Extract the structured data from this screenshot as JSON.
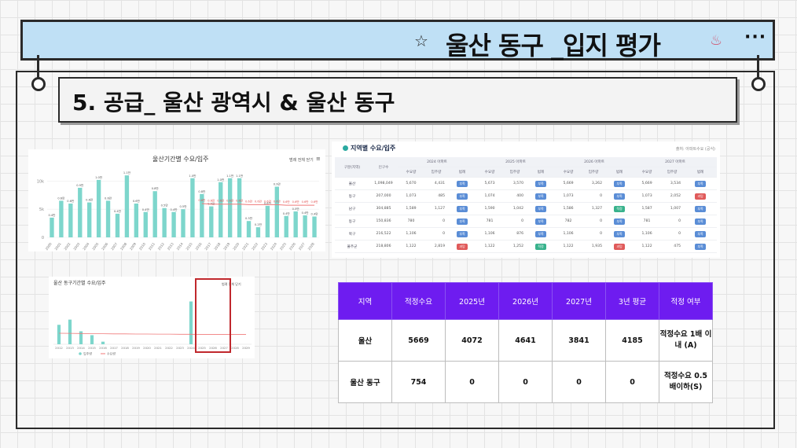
{
  "banner": {
    "title": "울산 동구 _입지 평가",
    "star": "☆",
    "shell": "♨",
    "more": "···"
  },
  "section": {
    "title": "5. 공급_ 울산 광역시 & 울산 동구"
  },
  "chart_data": [
    {
      "type": "bar",
      "title": "울산기간별 수요/입주",
      "controls": "범례 전체 닫기",
      "categories": [
        "2000",
        "2001",
        "2002",
        "2003",
        "2004",
        "2005",
        "2006",
        "2007",
        "2008",
        "2009",
        "2010",
        "2011",
        "2012",
        "2013",
        "2014",
        "2015",
        "2016",
        "2017",
        "2018",
        "2019",
        "2020",
        "2021",
        "2022",
        "2023",
        "2024",
        "2025",
        "2026",
        "2027",
        "2028"
      ],
      "series": [
        {
          "name": "입주량",
          "values": [
            3500,
            6500,
            6000,
            8800,
            6200,
            10200,
            6500,
            4200,
            11000,
            6000,
            4500,
            8200,
            5200,
            4500,
            5000,
            10500,
            7700,
            5500,
            9800,
            10500,
            10500,
            2900,
            1800,
            5600,
            9000,
            3800,
            4600,
            3900,
            3700
          ]
        },
        {
          "name": "수요량",
          "values": [
            null,
            null,
            null,
            null,
            null,
            null,
            null,
            null,
            null,
            null,
            null,
            null,
            null,
            null,
            null,
            null,
            6000,
            5900,
            5900,
            5900,
            5900,
            5800,
            5800,
            5800,
            5800,
            5700,
            5700,
            5700,
            5700
          ]
        }
      ],
      "bar_labels": [
        "0.4만",
        "0.6만",
        "0.6만",
        "0.9만",
        "0.6만",
        "1.0만",
        "0.6만",
        "0.4만",
        "1.1만",
        "0.6만",
        "0.4만",
        "0.8만",
        "0.5만",
        "0.4만",
        "0.5만",
        "1.0만",
        "0.8만",
        "0.5만",
        "1.0만",
        "1.1만",
        "1.1만",
        "0.3만",
        "0.2만",
        "0.6만",
        "0.9만",
        "0.4만",
        "0.5만",
        "0.4만",
        "0.4만"
      ],
      "demand_labels": [
        "0.6만",
        "0.6만",
        "0.6만",
        "0.6만",
        "0.6만",
        "0.6만",
        "0.6만",
        "0.6만",
        "0.6만",
        "0.6만",
        "0.6만",
        "0.6만",
        "0.6만"
      ],
      "yticks": [
        "10k",
        "5k",
        "0"
      ],
      "ylim": [
        0,
        12000
      ]
    },
    {
      "type": "bar",
      "title": "울산 동구기간별 수요/입주",
      "controls": "범례 전체 닫기",
      "categories": [
        "2012",
        "2013",
        "2014",
        "2015",
        "2016",
        "2017",
        "2018",
        "2019",
        "2020",
        "2021",
        "2022",
        "2023",
        "2024",
        "2025",
        "2026",
        "2027",
        "2028",
        "2029"
      ],
      "series": [
        {
          "name": "입주량",
          "values": [
            1500,
            1900,
            1000,
            700,
            200,
            0,
            0,
            0,
            0,
            0,
            0,
            0,
            3300,
            0,
            0,
            0,
            0,
            0
          ]
        },
        {
          "name": "수요량",
          "values": [
            850,
            840,
            830,
            820,
            810,
            800,
            800,
            790,
            790,
            780,
            780,
            770,
            770,
            760,
            760,
            754,
            754,
            754
          ]
        }
      ],
      "legend": [
        "입주량",
        "수요량"
      ],
      "highlight": [
        "2025",
        "2026",
        "2027"
      ]
    }
  ],
  "supply_table": {
    "title": "지역별 수요/입주",
    "source": "출처: 아파트수요 (공식)",
    "headers_top": [
      "구분(지역)",
      "인구수",
      "2024 아파트",
      "2025 아파트",
      "2026 아파트",
      "2027 아파트"
    ],
    "headers_sub": [
      "수요량",
      "입주량",
      "범례"
    ],
    "rows": [
      {
        "region": "울산",
        "pop": "1,098,049",
        "y2024": [
          "5,670",
          "4,431",
          "부족"
        ],
        "y2025": [
          "5,673",
          "3,570",
          "부족"
        ],
        "y2026": [
          "5,669",
          "3,262",
          "부족"
        ],
        "y2027": [
          "5,669",
          "3,534",
          "부족"
        ]
      },
      {
        "region": "동구",
        "pop": "207,000",
        "y2024": [
          "1,073",
          "485",
          "부족"
        ],
        "y2025": [
          "1,074",
          "400",
          "부족"
        ],
        "y2026": [
          "1,073",
          "0",
          "부족"
        ],
        "y2027": [
          "1,073",
          "2,052",
          "과잉"
        ]
      },
      {
        "region": "남구",
        "pop": "304,885",
        "y2024": [
          "1,589",
          "1,127",
          "부족"
        ],
        "y2025": [
          "1,590",
          "1,042",
          "부족"
        ],
        "y2026": [
          "1,586",
          "1,327",
          "적정"
        ],
        "y2027": [
          "1,587",
          "1,007",
          "부족"
        ]
      },
      {
        "region": "동구",
        "pop": "150,836",
        "y2024": [
          "780",
          "0",
          "부족"
        ],
        "y2025": [
          "781",
          "0",
          "부족"
        ],
        "y2026": [
          "782",
          "0",
          "부족"
        ],
        "y2027": [
          "781",
          "0",
          "부족"
        ]
      },
      {
        "region": "북구",
        "pop": "216,522",
        "y2024": [
          "1,106",
          "0",
          "부족"
        ],
        "y2025": [
          "1,106",
          "876",
          "부족"
        ],
        "y2026": [
          "1,106",
          "0",
          "부족"
        ],
        "y2027": [
          "1,106",
          "0",
          "부족"
        ]
      },
      {
        "region": "울주군",
        "pop": "218,806",
        "y2024": [
          "1,122",
          "2,819",
          "과잉"
        ],
        "y2025": [
          "1,122",
          "1,252",
          "적정"
        ],
        "y2026": [
          "1,122",
          "1,935",
          "과잉"
        ],
        "y2027": [
          "1,122",
          "475",
          "부족"
        ]
      }
    ]
  },
  "summary": {
    "headers": [
      "지역",
      "적정수요",
      "2025년",
      "2026년",
      "2027년",
      "3년 평균",
      "적정 여부"
    ],
    "rows": [
      [
        "울산",
        "5669",
        "4072",
        "4641",
        "3841",
        "4185",
        "적정수요 1배 이내 (A)"
      ],
      [
        "울산 동구",
        "754",
        "0",
        "0",
        "0",
        "0",
        "적정수요 0.5 배이하(S)"
      ]
    ]
  },
  "colors": {
    "bar": "#7dd6cc",
    "demand_line": "#f07a7a",
    "highlight_box": "#c0282d",
    "summary_head": "#6e1cf0",
    "banner": "#bfe0f5"
  }
}
